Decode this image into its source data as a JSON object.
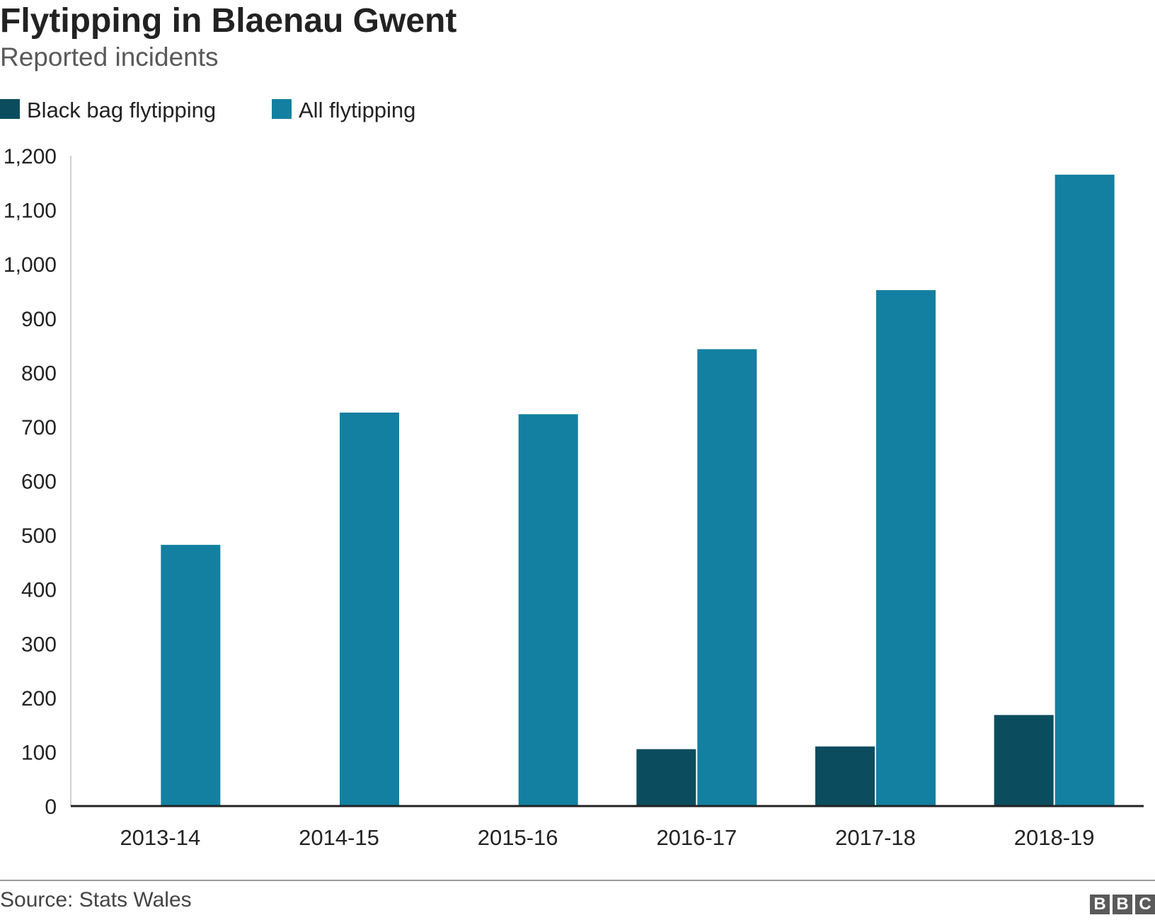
{
  "chart_data": {
    "type": "bar",
    "title": "Flytipping in Blaenau Gwent",
    "subtitle": "Reported incidents",
    "categories": [
      "2013-14",
      "2014-15",
      "2015-16",
      "2016-17",
      "2017-18",
      "2018-19"
    ],
    "series": [
      {
        "name": "Black bag flytipping",
        "color": "#0b4d5e",
        "values": [
          0,
          0,
          0,
          105,
          110,
          168
        ]
      },
      {
        "name": "All flytipping",
        "color": "#1380a1",
        "values": [
          482,
          726,
          723,
          843,
          952,
          1165
        ]
      }
    ],
    "ylim": [
      0,
      1200
    ],
    "yticks": [
      0,
      100,
      200,
      300,
      400,
      500,
      600,
      700,
      800,
      900,
      1000,
      1100,
      1200
    ],
    "ytick_labels": [
      "0",
      "100",
      "200",
      "300",
      "400",
      "500",
      "600",
      "700",
      "800",
      "900",
      "1,000",
      "1,100",
      "1,200"
    ],
    "legend_position": "top-left",
    "grid": false,
    "source": "Source: Stats Wales"
  },
  "branding": {
    "logo_letters": [
      "B",
      "B",
      "C"
    ]
  }
}
